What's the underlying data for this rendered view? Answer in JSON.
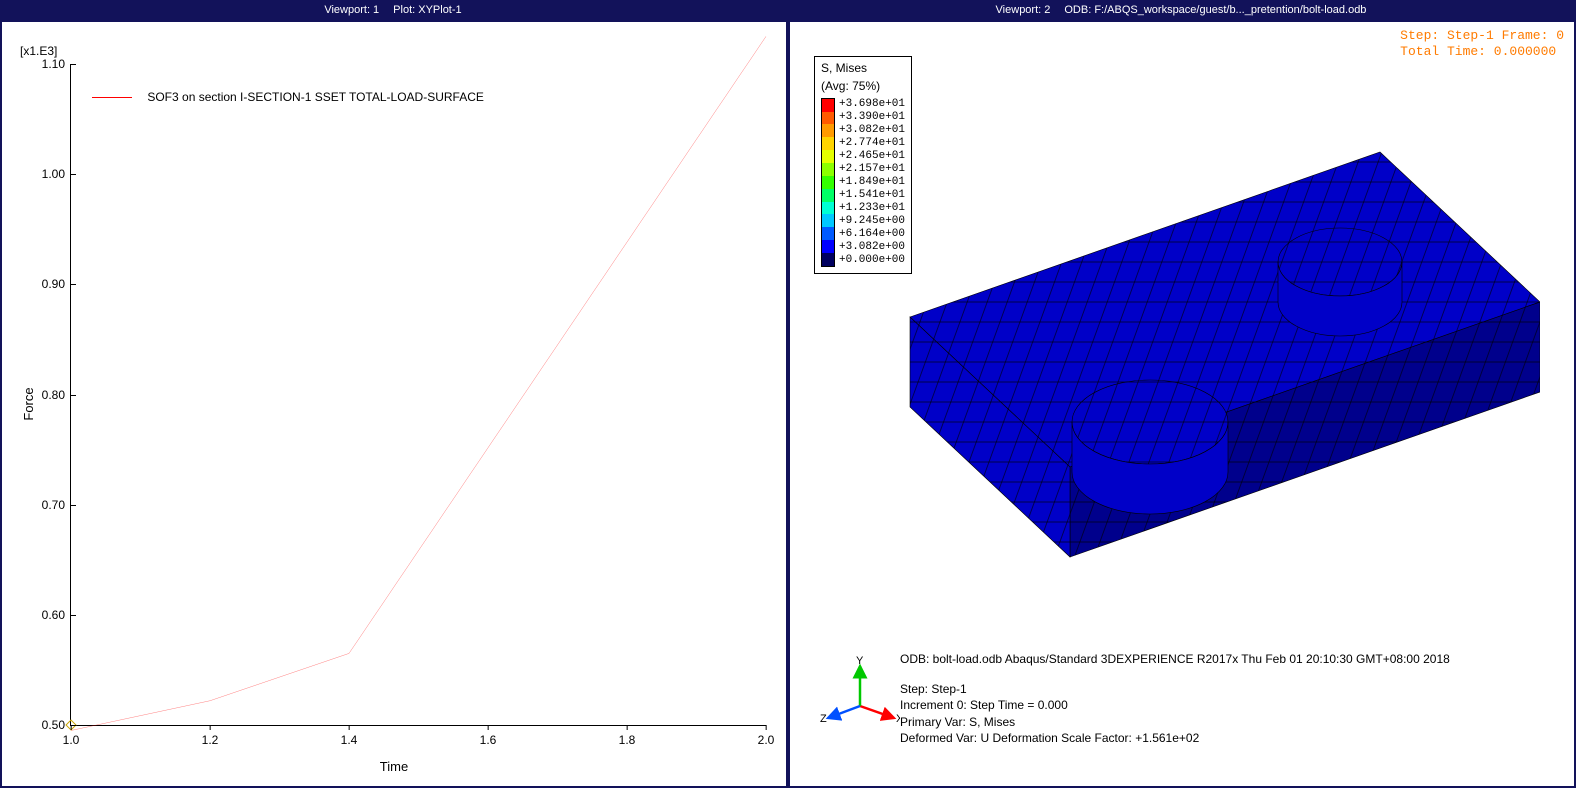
{
  "titlebars": {
    "left": {
      "viewport": "Viewport: 1",
      "plot": "Plot: XYPlot-1"
    },
    "right": {
      "viewport": "Viewport: 2",
      "odb": "ODB: F:/ABQS_workspace/guest/b..._pretention/bolt-load.odb"
    }
  },
  "chart": {
    "type": "line",
    "axis_exp": "[x1.E3]",
    "xlabel": "Time",
    "ylabel": "Force",
    "legend": "SOF3  on section I-SECTION-1 SSET TOTAL-LOAD-SURFACE",
    "line_color": "#ff0000",
    "xlim": [
      1.0,
      2.0
    ],
    "ylim": [
      0.5,
      1.1
    ],
    "xticks": [
      "1.0",
      "1.2",
      "1.4",
      "1.6",
      "1.8",
      "2.0"
    ],
    "yticks": [
      "0.50",
      "0.60",
      "0.70",
      "0.80",
      "0.90",
      "1.00",
      "1.10"
    ],
    "points": [
      [
        1.0,
        0.495
      ],
      [
        1.2,
        0.522
      ],
      [
        1.4,
        0.565
      ],
      [
        2.0,
        1.125
      ]
    ]
  },
  "right": {
    "step_line1": "Step: Step-1   Frame: 0",
    "step_line2": "Total Time: 0.000000",
    "legend_title1": "S, Mises",
    "legend_title2": "(Avg: 75%)",
    "legend_colors": [
      "#ff0000",
      "#ff5a00",
      "#ff9a00",
      "#ffd400",
      "#e4ff00",
      "#8cff00",
      "#33ff00",
      "#00ff66",
      "#00ffd4",
      "#00c8ff",
      "#005aff",
      "#0000ff",
      "#000060"
    ],
    "legend_values": [
      "+3.698e+01",
      "+3.390e+01",
      "+3.082e+01",
      "+2.774e+01",
      "+2.465e+01",
      "+2.157e+01",
      "+1.849e+01",
      "+1.541e+01",
      "+1.233e+01",
      "+9.245e+00",
      "+6.164e+00",
      "+3.082e+00",
      "+0.000e+00"
    ],
    "mesh_color": "#0000c8",
    "mesh_color_dark": "#00008c",
    "odb_line": "ODB: bolt-load.odb    Abaqus/Standard 3DEXPERIENCE R2017x    Thu Feb 01 20:10:30 GMT+08:00 2018",
    "step_block": [
      "Step: Step-1",
      "Increment      0: Step Time =    0.000",
      "Primary Var: S, Mises",
      "Deformed Var: U   Deformation Scale Factor: +1.561e+02"
    ],
    "triad": {
      "x": "X",
      "y": "Y",
      "z": "Z"
    }
  }
}
